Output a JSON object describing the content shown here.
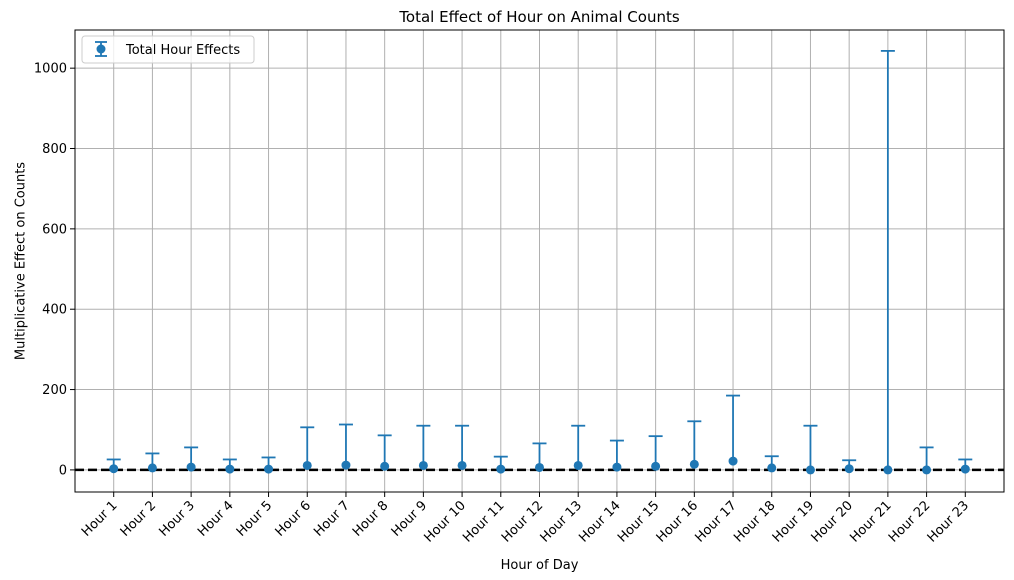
{
  "chart_data": {
    "type": "scatter",
    "title": "Total Effect of Hour on Animal Counts",
    "xlabel": "Hour of Day",
    "ylabel": "Multiplicative Effect on Counts",
    "categories": [
      "Hour 1",
      "Hour 2",
      "Hour 3",
      "Hour 4",
      "Hour 5",
      "Hour 6",
      "Hour 7",
      "Hour 8",
      "Hour 9",
      "Hour 10",
      "Hour 11",
      "Hour 12",
      "Hour 13",
      "Hour 14",
      "Hour 15",
      "Hour 16",
      "Hour 17",
      "Hour 18",
      "Hour 19",
      "Hour 20",
      "Hour 21",
      "Hour 22",
      "Hour 23"
    ],
    "series": [
      {
        "name": "Total Hour Effects",
        "values": [
          3,
          5,
          7,
          2,
          2,
          11,
          12,
          9,
          11,
          11,
          2,
          6,
          11,
          7,
          9,
          14,
          22,
          5,
          0,
          3,
          0,
          0,
          2
        ],
        "upper": [
          26,
          41,
          56,
          26,
          31,
          106,
          113,
          86,
          110,
          110,
          33,
          66,
          110,
          73,
          84,
          121,
          185,
          34,
          110,
          24,
          1043,
          56,
          26
        ]
      }
    ],
    "ylim": [
      -55,
      1095
    ],
    "yticks": [
      0,
      200,
      400,
      600,
      800,
      1000
    ],
    "reference_line": 0,
    "grid": true,
    "legend": "top-left",
    "colors": {
      "series": "#1f77b4",
      "grid": "#b0b0b0",
      "reference": "#000000"
    }
  }
}
